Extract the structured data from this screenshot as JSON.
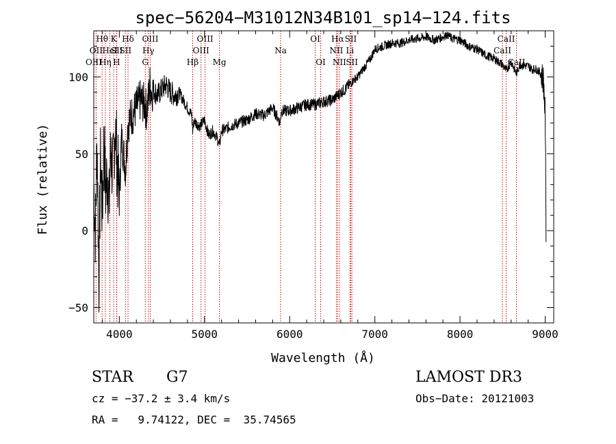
{
  "chart_data": {
    "type": "line",
    "title": "spec−56204−M31012N34B101_sp14−124.fits",
    "xlabel": "Wavelength (Å)",
    "ylabel": "Flux (relative)",
    "xlim": [
      3700,
      9100
    ],
    "ylim": [
      -60,
      130
    ],
    "xticks": [
      4000,
      5000,
      6000,
      7000,
      8000,
      9000
    ],
    "yticks": [
      -50,
      0,
      50,
      100
    ],
    "xtick_labels": [
      "4000",
      "5000",
      "6000",
      "7000",
      "8000",
      "9000"
    ],
    "ytick_labels": [
      "−50",
      "0",
      "50",
      "100"
    ],
    "grid": false,
    "line_color": "#000000",
    "marker_color": "#cc0000",
    "series": [
      {
        "name": "flux",
        "x": [
          3700,
          3720,
          3740,
          3760,
          3780,
          3800,
          3820,
          3840,
          3860,
          3880,
          3900,
          3925,
          3950,
          3975,
          4000,
          4025,
          4050,
          4075,
          4100,
          4150,
          4200,
          4250,
          4300,
          4320,
          4340,
          4360,
          4380,
          4400,
          4450,
          4500,
          4550,
          4600,
          4650,
          4700,
          4750,
          4800,
          4850,
          4861,
          4880,
          4900,
          4950,
          5000,
          5050,
          5100,
          5150,
          5175,
          5200,
          5250,
          5300,
          5400,
          5500,
          5600,
          5700,
          5800,
          5890,
          5900,
          6000,
          6100,
          6200,
          6300,
          6400,
          6500,
          6563,
          6600,
          6650,
          6700,
          6750,
          6800,
          6850,
          6900,
          6950,
          7000,
          7100,
          7200,
          7300,
          7400,
          7500,
          7600,
          7700,
          7800,
          7850,
          7900,
          8000,
          8100,
          8200,
          8300,
          8400,
          8498,
          8542,
          8600,
          8662,
          8700,
          8800,
          8850,
          8900,
          8950,
          8980,
          9000,
          9010
        ],
        "y": [
          30,
          0,
          60,
          -35,
          50,
          10,
          60,
          25,
          40,
          15,
          55,
          35,
          70,
          45,
          20,
          60,
          50,
          40,
          70,
          75,
          80,
          85,
          82,
          78,
          85,
          95,
          90,
          92,
          88,
          92,
          95,
          90,
          88,
          90,
          85,
          80,
          75,
          65,
          72,
          70,
          68,
          72,
          62,
          65,
          60,
          55,
          65,
          66,
          68,
          70,
          72,
          76,
          75,
          80,
          70,
          78,
          78,
          80,
          82,
          82,
          84,
          85,
          88,
          90,
          92,
          95,
          98,
          100,
          104,
          108,
          112,
          118,
          120,
          122,
          122,
          124,
          125,
          126,
          124,
          126,
          128,
          125,
          124,
          120,
          118,
          114,
          112,
          108,
          104,
          110,
          102,
          108,
          107,
          105,
          105,
          102,
          98,
          75,
          0
        ]
      }
    ],
    "line_markers": [
      {
        "label": "Hθ",
        "x": 3798,
        "row": 1
      },
      {
        "label": "OII",
        "x": 3727,
        "row": 2
      },
      {
        "label": "OIII",
        "x": 3700,
        "row": 3
      },
      {
        "label": "Hη",
        "x": 3836,
        "row": 3
      },
      {
        "label": "K",
        "x": 3934,
        "row": 1
      },
      {
        "label": "HeI",
        "x": 3889,
        "row": 2
      },
      {
        "label": "SII",
        "x": 3970,
        "row": 2
      },
      {
        "label": "H",
        "x": 3968,
        "row": 3
      },
      {
        "label": "Hδ",
        "x": 4102,
        "row": 1
      },
      {
        "label": "OIII",
        "x": 4363,
        "row": 1
      },
      {
        "label": "SII",
        "x": 4072,
        "row": 2
      },
      {
        "label": "Hγ",
        "x": 4341,
        "row": 2
      },
      {
        "label": "G",
        "x": 4305,
        "row": 3
      },
      {
        "label": "Hβ",
        "x": 4861,
        "row": 3
      },
      {
        "label": "OIII",
        "x": 5007,
        "row": 1
      },
      {
        "label": "OIII",
        "x": 4959,
        "row": 2
      },
      {
        "label": "Mg",
        "x": 5175,
        "row": 3
      },
      {
        "label": "Na",
        "x": 5893,
        "row": 2
      },
      {
        "label": "OI",
        "x": 6300,
        "row": 1
      },
      {
        "label": "OI",
        "x": 6364,
        "row": 3
      },
      {
        "label": "Hα",
        "x": 6563,
        "row": 1
      },
      {
        "label": "SII",
        "x": 6717,
        "row": 1
      },
      {
        "label": "NII",
        "x": 6548,
        "row": 2
      },
      {
        "label": "Li",
        "x": 6708,
        "row": 2
      },
      {
        "label": "NII",
        "x": 6584,
        "row": 3
      },
      {
        "label": "SII",
        "x": 6731,
        "row": 3
      },
      {
        "label": "CaII",
        "x": 8542,
        "row": 1
      },
      {
        "label": "CaII",
        "x": 8498,
        "row": 2
      },
      {
        "label": "CaII",
        "x": 8662,
        "row": 3
      }
    ]
  },
  "info": {
    "object_type": "STAR",
    "subclass": "G7",
    "survey": "LAMOST DR3",
    "cz": "cz = −37.2 ± 3.4 km/s",
    "obs_date": "Obs−Date: 20121003",
    "coords": "RA =   9.74122, DEC =  35.74565"
  }
}
